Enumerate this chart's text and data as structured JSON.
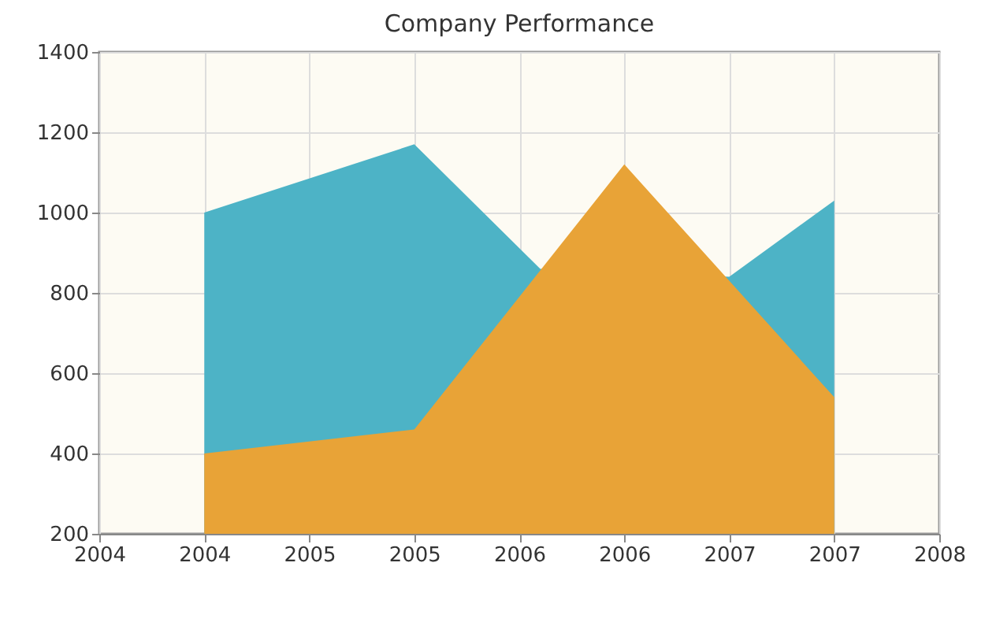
{
  "chart_data": {
    "type": "area",
    "title": "Company Performance",
    "x": [
      2004,
      2005,
      2006,
      2007
    ],
    "series": [
      {
        "color": "#4db3c6",
        "x": [
          2004,
          2005,
          2005.6,
          2006.5,
          2007
        ],
        "values": [
          1000,
          1170,
          860,
          840,
          1030
        ]
      },
      {
        "color": "#e8a337",
        "values": [
          400,
          460,
          1120,
          540
        ]
      }
    ],
    "xlim": [
      2003.5,
      2007.5
    ],
    "xticks": [
      {
        "value": 2003.5,
        "label": "2004"
      },
      2004,
      {
        "value": 2004.5,
        "label": "2005"
      },
      2005,
      {
        "value": 2005.5,
        "label": "2006"
      },
      2006,
      {
        "value": 2006.5,
        "label": "2007"
      },
      2007,
      {
        "value": 2007.5,
        "label": "2008"
      }
    ],
    "ylim": [
      200,
      1400
    ],
    "yticks": [
      200,
      400,
      600,
      800,
      1000,
      1200,
      1400
    ],
    "grid": true
  }
}
